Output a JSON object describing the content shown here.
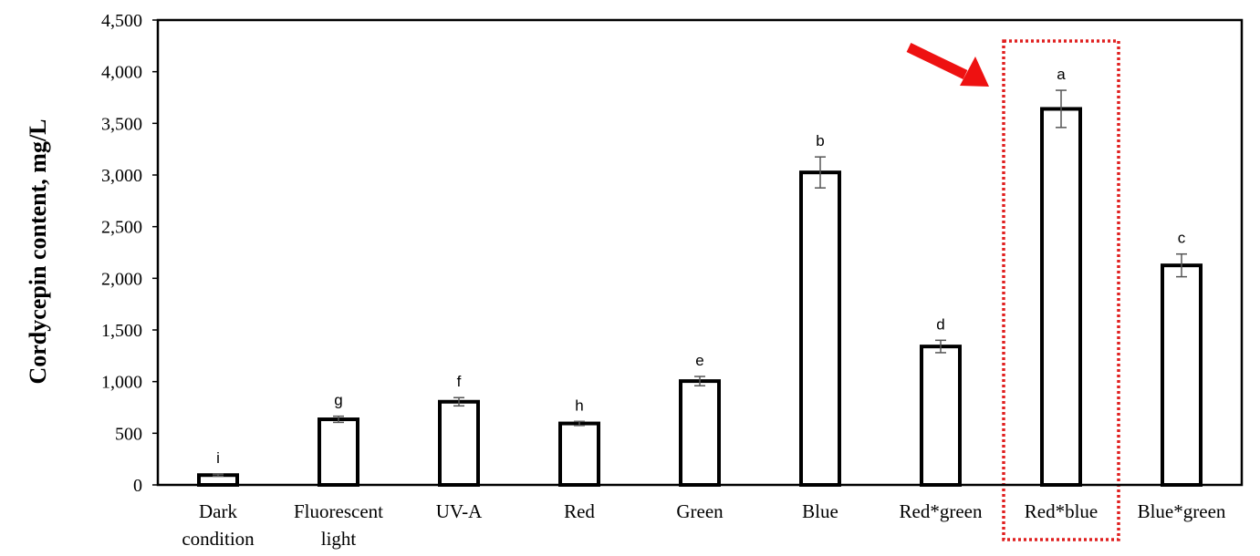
{
  "chart_data": {
    "type": "bar",
    "title": "",
    "xlabel": "",
    "ylabel": "Cordycepin content,  mg/L",
    "ylim": [
      0,
      4500
    ],
    "ytick_values": [
      0,
      500,
      1000,
      1500,
      2000,
      2500,
      3000,
      3500,
      4000,
      4500
    ],
    "ytick_labels": [
      "0",
      "500",
      "1,000",
      "1,500",
      "2,000",
      "2,500",
      "3,000",
      "3,500",
      "4,000",
      "4,500"
    ],
    "categories": [
      [
        "Dark",
        "condition"
      ],
      [
        "Fluorescent",
        "light"
      ],
      [
        "UV-A"
      ],
      [
        "Red"
      ],
      [
        "Green"
      ],
      [
        "Blue"
      ],
      [
        "Red*green"
      ],
      [
        "Red*blue"
      ],
      [
        "Blue*green"
      ]
    ],
    "values": [
      95,
      635,
      805,
      595,
      1005,
      3025,
      1340,
      3640,
      2125
    ],
    "errors": [
      10,
      30,
      40,
      20,
      45,
      150,
      60,
      180,
      110
    ],
    "significance_letters": [
      "i",
      "g",
      "f",
      "h",
      "e",
      "b",
      "d",
      "a",
      "c"
    ],
    "highlighted_category": "Red*blue",
    "grid": false,
    "colors": {
      "bar_fill": "#ffffff",
      "bar_stroke": "#000000",
      "error_bar": "#555555",
      "highlight_box": "#e02020",
      "arrow": "#ee1111"
    }
  }
}
